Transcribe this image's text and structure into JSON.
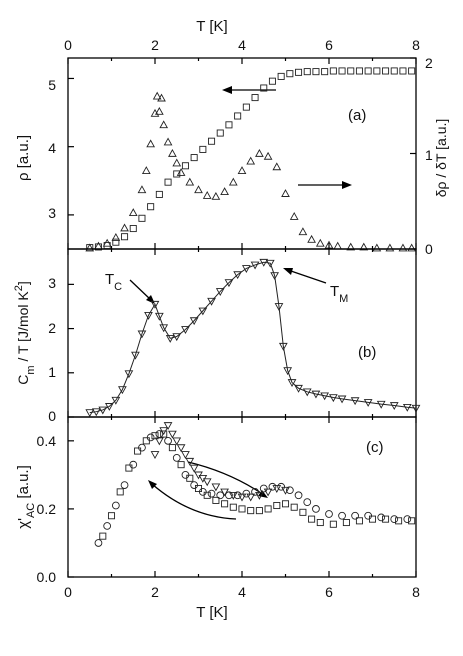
{
  "figure": {
    "top_axis_label": "T [K]",
    "bottom_axis_label": "T [K]",
    "x_ticks": [
      "0",
      "2",
      "4",
      "6",
      "8"
    ]
  },
  "chart_data": [
    {
      "id": "a",
      "type": "scatter",
      "panel_label": "(a)",
      "xlabel": "T [K]",
      "ylabel": "ρ [a.u.]",
      "ylabel_right": "δρ / δT [a.u.]",
      "xlim": [
        0,
        8
      ],
      "ylim": [
        2.5,
        5.3
      ],
      "ylim_right": [
        0,
        2
      ],
      "y_ticks": [
        "3",
        "4",
        "5"
      ],
      "y_ticks_right": [
        "0",
        "1",
        "2"
      ],
      "series": [
        {
          "marker": "square",
          "axis": "left",
          "x": [
            0.5,
            0.7,
            0.9,
            1.1,
            1.3,
            1.5,
            1.7,
            1.9,
            2.1,
            2.3,
            2.5,
            2.7,
            2.9,
            3.1,
            3.3,
            3.5,
            3.7,
            3.9,
            4.1,
            4.3,
            4.5,
            4.7,
            4.9,
            5.1,
            5.3,
            5.5,
            5.7,
            5.9,
            6.1,
            6.3,
            6.5,
            6.7,
            6.9,
            7.1,
            7.3,
            7.5,
            7.7,
            7.9
          ],
          "y": [
            2.52,
            2.53,
            2.55,
            2.6,
            2.68,
            2.8,
            2.95,
            3.12,
            3.3,
            3.48,
            3.6,
            3.72,
            3.84,
            3.96,
            4.08,
            4.2,
            4.32,
            4.45,
            4.58,
            4.72,
            4.86,
            4.96,
            5.03,
            5.07,
            5.09,
            5.1,
            5.1,
            5.1,
            5.11,
            5.11,
            5.11,
            5.11,
            5.11,
            5.11,
            5.11,
            5.11,
            5.11,
            5.11
          ]
        },
        {
          "marker": "triangle-up",
          "axis": "right",
          "x": [
            0.5,
            0.7,
            0.9,
            1.1,
            1.3,
            1.5,
            1.7,
            1.8,
            1.9,
            2.0,
            2.05,
            2.1,
            2.15,
            2.2,
            2.3,
            2.4,
            2.5,
            2.6,
            2.8,
            3.0,
            3.2,
            3.4,
            3.6,
            3.8,
            4.0,
            4.2,
            4.4,
            4.6,
            4.8,
            5.0,
            5.2,
            5.4,
            5.6,
            5.8,
            6.0,
            6.2,
            6.5,
            6.8,
            7.1,
            7.4,
            7.7,
            7.9
          ],
          "y": [
            0.01,
            0.03,
            0.06,
            0.12,
            0.22,
            0.38,
            0.62,
            0.82,
            1.1,
            1.42,
            1.6,
            1.44,
            1.58,
            1.3,
            1.12,
            1.0,
            0.9,
            0.8,
            0.7,
            0.62,
            0.56,
            0.55,
            0.6,
            0.7,
            0.82,
            0.92,
            1.0,
            0.97,
            0.86,
            0.58,
            0.34,
            0.18,
            0.1,
            0.06,
            0.04,
            0.03,
            0.02,
            0.02,
            0.01,
            0.01,
            0.01,
            0.01
          ]
        }
      ]
    },
    {
      "id": "b",
      "type": "line",
      "panel_label": "(b)",
      "xlabel": "T [K]",
      "ylabel": "C_m / T [J/mol K^2]",
      "xlim": [
        0,
        8
      ],
      "ylim": [
        0,
        3.8
      ],
      "y_ticks": [
        "0",
        "1",
        "2",
        "3"
      ],
      "annotations": [
        {
          "text": "T_C",
          "x": 2.0,
          "y": 2.5
        },
        {
          "text": "T_M",
          "x": 4.65,
          "y": 3.5
        }
      ],
      "series": [
        {
          "marker": "triangle-down",
          "x": [
            0.5,
            0.65,
            0.8,
            0.95,
            1.1,
            1.25,
            1.4,
            1.55,
            1.7,
            1.85,
            2.0,
            2.1,
            2.2,
            2.35,
            2.5,
            2.7,
            2.9,
            3.1,
            3.3,
            3.5,
            3.7,
            3.9,
            4.1,
            4.3,
            4.5,
            4.65,
            4.75,
            4.85,
            4.95,
            5.05,
            5.15,
            5.3,
            5.5,
            5.7,
            5.9,
            6.1,
            6.3,
            6.6,
            6.9,
            7.2,
            7.5,
            7.8,
            8.0
          ],
          "y": [
            0.1,
            0.12,
            0.16,
            0.24,
            0.38,
            0.62,
            0.98,
            1.4,
            1.88,
            2.3,
            2.55,
            2.28,
            2.02,
            1.78,
            1.82,
            1.98,
            2.18,
            2.4,
            2.62,
            2.84,
            3.04,
            3.22,
            3.36,
            3.44,
            3.5,
            3.48,
            3.2,
            2.5,
            1.6,
            1.05,
            0.78,
            0.65,
            0.57,
            0.52,
            0.48,
            0.44,
            0.41,
            0.37,
            0.33,
            0.29,
            0.26,
            0.22,
            0.2
          ]
        }
      ]
    },
    {
      "id": "c",
      "type": "scatter",
      "panel_label": "(c)",
      "xlabel": "T [K]",
      "ylabel": "χ'_AC [a.u.]",
      "xlim": [
        0,
        8
      ],
      "ylim": [
        0,
        0.47
      ],
      "y_ticks": [
        "0.0",
        "0.2",
        "0.4"
      ],
      "series": [
        {
          "marker": "circle",
          "x": [
            0.7,
            0.9,
            1.1,
            1.3,
            1.5,
            1.7,
            1.9,
            2.1,
            2.3,
            2.5,
            2.7,
            2.9,
            3.1,
            3.3,
            3.5,
            3.7,
            3.9,
            4.1,
            4.3,
            4.5,
            4.7,
            4.9,
            5.1,
            5.3,
            5.5,
            5.7,
            6.0,
            6.3,
            6.6,
            6.9,
            7.2,
            7.5,
            7.8
          ],
          "y": [
            0.1,
            0.15,
            0.21,
            0.27,
            0.33,
            0.38,
            0.41,
            0.42,
            0.4,
            0.35,
            0.3,
            0.27,
            0.25,
            0.245,
            0.24,
            0.24,
            0.24,
            0.245,
            0.25,
            0.26,
            0.265,
            0.265,
            0.255,
            0.24,
            0.22,
            0.2,
            0.185,
            0.18,
            0.18,
            0.18,
            0.175,
            0.17,
            0.17
          ]
        },
        {
          "marker": "square",
          "x": [
            0.8,
            1.0,
            1.2,
            1.4,
            1.6,
            1.8,
            2.0,
            2.2,
            2.4,
            2.6,
            2.8,
            3.0,
            3.2,
            3.4,
            3.6,
            3.8,
            4.0,
            4.2,
            4.4,
            4.6,
            4.8,
            5.0,
            5.2,
            5.4,
            5.6,
            5.8,
            6.1,
            6.4,
            6.7,
            7.0,
            7.3,
            7.6,
            7.9
          ],
          "y": [
            0.12,
            0.18,
            0.25,
            0.32,
            0.37,
            0.4,
            0.415,
            0.42,
            0.38,
            0.33,
            0.29,
            0.26,
            0.24,
            0.225,
            0.215,
            0.205,
            0.2,
            0.195,
            0.195,
            0.2,
            0.21,
            0.215,
            0.205,
            0.19,
            0.17,
            0.16,
            0.155,
            0.16,
            0.165,
            0.17,
            0.17,
            0.165,
            0.165
          ]
        },
        {
          "marker": "triangle-down",
          "x": [
            2.0,
            2.1,
            2.2,
            2.3,
            2.4,
            2.5,
            2.6,
            2.7,
            2.8,
            2.9,
            3.0,
            3.1,
            3.2,
            3.4,
            3.6,
            3.8,
            4.0,
            4.2,
            4.4,
            4.6,
            4.8,
            5.0
          ],
          "y": [
            0.36,
            0.4,
            0.43,
            0.445,
            0.42,
            0.4,
            0.38,
            0.36,
            0.34,
            0.32,
            0.3,
            0.29,
            0.28,
            0.265,
            0.25,
            0.24,
            0.235,
            0.235,
            0.24,
            0.25,
            0.26,
            0.255
          ]
        }
      ]
    }
  ]
}
